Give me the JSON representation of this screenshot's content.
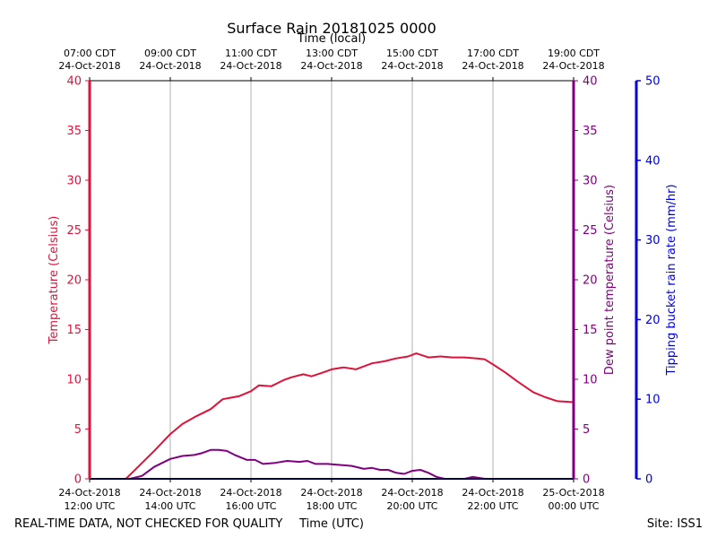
{
  "chart_data": {
    "type": "line",
    "title": "Surface Rain 20181025 0000",
    "top_axis_label": "Time (local)",
    "xlabel": "Time (UTC)",
    "ylabel_left": "Temperature (Celsius)",
    "ylabel_right": "Dew point temperature (Celsius)",
    "ylabel_far_right": "Tipping bucket rain rate (mm/hr)",
    "footer_left": "REAL-TIME DATA, NOT CHECKED FOR QUALITY",
    "footer_right": "Site: ISS1",
    "x_range_hours_utc": [
      12,
      24
    ],
    "ylim_temperature": [
      0,
      40
    ],
    "ylim_dewpoint": [
      0,
      40
    ],
    "ylim_rain": [
      0,
      50
    ],
    "grid": "vertical",
    "bottom_ticks": [
      {
        "hour": 12,
        "line1": "24-Oct-2018",
        "line2": "12:00 UTC"
      },
      {
        "hour": 14,
        "line1": "24-Oct-2018",
        "line2": "14:00 UTC"
      },
      {
        "hour": 16,
        "line1": "24-Oct-2018",
        "line2": "16:00 UTC"
      },
      {
        "hour": 18,
        "line1": "24-Oct-2018",
        "line2": "18:00 UTC"
      },
      {
        "hour": 20,
        "line1": "24-Oct-2018",
        "line2": "20:00 UTC"
      },
      {
        "hour": 22,
        "line1": "24-Oct-2018",
        "line2": "22:00 UTC"
      },
      {
        "hour": 24,
        "line1": "25-Oct-2018",
        "line2": "00:00 UTC"
      }
    ],
    "top_ticks": [
      {
        "hour": 12,
        "line1": "07:00 CDT",
        "line2": "24-Oct-2018"
      },
      {
        "hour": 14,
        "line1": "09:00 CDT",
        "line2": "24-Oct-2018"
      },
      {
        "hour": 16,
        "line1": "11:00 CDT",
        "line2": "24-Oct-2018"
      },
      {
        "hour": 18,
        "line1": "13:00 CDT",
        "line2": "24-Oct-2018"
      },
      {
        "hour": 20,
        "line1": "15:00 CDT",
        "line2": "24-Oct-2018"
      },
      {
        "hour": 22,
        "line1": "17:00 CDT",
        "line2": "24-Oct-2018"
      },
      {
        "hour": 24,
        "line1": "19:00 CDT",
        "line2": "24-Oct-2018"
      }
    ],
    "temp_ticks": [
      0,
      5,
      10,
      15,
      20,
      25,
      30,
      35,
      40
    ],
    "rain_ticks": [
      0,
      10,
      20,
      30,
      40,
      50
    ],
    "series": [
      {
        "name": "Temperature",
        "color": "#dc143c",
        "axis": "temperature",
        "x": [
          12.0,
          12.5,
          12.9,
          13.2,
          13.6,
          14.0,
          14.3,
          14.6,
          15.0,
          15.3,
          15.7,
          16.0,
          16.2,
          16.5,
          16.8,
          17.0,
          17.3,
          17.5,
          17.8,
          18.0,
          18.3,
          18.6,
          19.0,
          19.3,
          19.6,
          19.9,
          20.1,
          20.4,
          20.7,
          21.0,
          21.3,
          21.6,
          21.8,
          22.0,
          22.3,
          22.6,
          23.0,
          23.3,
          23.6,
          24.0
        ],
        "values": [
          0.0,
          0.0,
          0.0,
          1.2,
          2.8,
          4.5,
          5.5,
          6.2,
          7.0,
          8.0,
          8.3,
          8.8,
          9.4,
          9.3,
          9.9,
          10.2,
          10.5,
          10.3,
          10.7,
          11.0,
          11.2,
          11.0,
          11.6,
          11.8,
          12.1,
          12.3,
          12.6,
          12.2,
          12.3,
          12.2,
          12.2,
          12.1,
          12.0,
          11.5,
          10.7,
          9.8,
          8.7,
          8.2,
          7.8,
          7.7
        ]
      },
      {
        "name": "Dew point",
        "color": "#800080",
        "axis": "dewpoint",
        "x": [
          12.0,
          12.5,
          13.0,
          13.3,
          13.6,
          14.0,
          14.3,
          14.6,
          14.8,
          15.0,
          15.2,
          15.4,
          15.6,
          15.9,
          16.1,
          16.3,
          16.6,
          16.9,
          17.2,
          17.4,
          17.6,
          17.9,
          18.2,
          18.5,
          18.8,
          19.0,
          19.2,
          19.4,
          19.6,
          19.8,
          20.0,
          20.2,
          20.4,
          20.6,
          20.8,
          21.0,
          21.3,
          21.5,
          21.8,
          22.0,
          24.0
        ],
        "values": [
          0.0,
          0.0,
          0.0,
          0.3,
          1.2,
          2.0,
          2.3,
          2.4,
          2.6,
          2.9,
          2.9,
          2.8,
          2.4,
          1.9,
          1.9,
          1.5,
          1.6,
          1.8,
          1.7,
          1.8,
          1.5,
          1.5,
          1.4,
          1.3,
          1.0,
          1.1,
          0.9,
          0.9,
          0.6,
          0.5,
          0.8,
          0.9,
          0.6,
          0.2,
          0.0,
          0.0,
          0.0,
          0.2,
          0.0,
          0.0,
          0.0
        ]
      },
      {
        "name": "Rain rate",
        "color": "#000080",
        "axis": "rain",
        "x": [
          12.0,
          24.0
        ],
        "values": [
          0.0,
          0.0
        ]
      }
    ]
  }
}
